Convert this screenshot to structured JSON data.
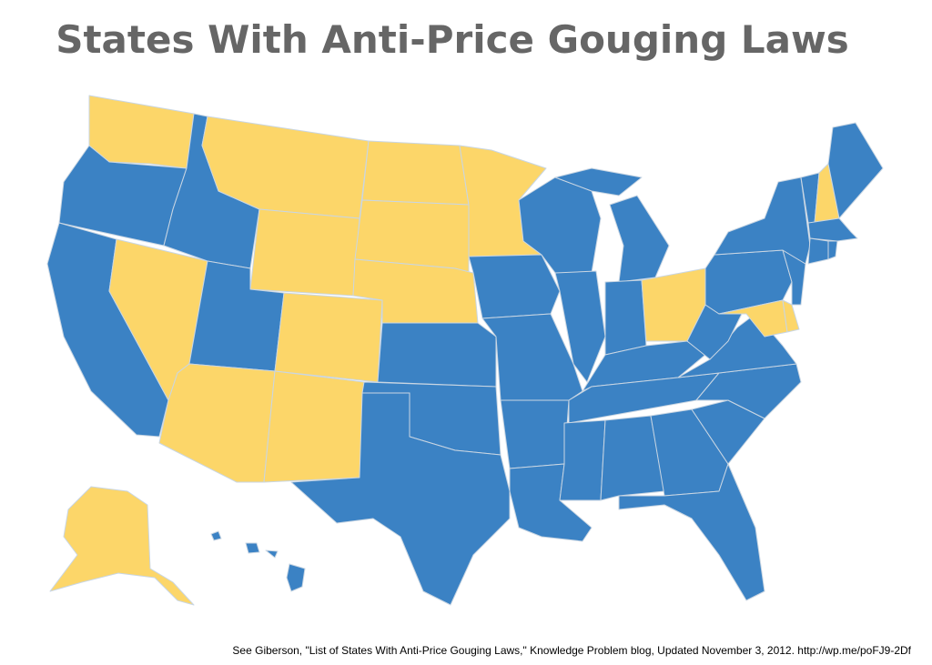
{
  "title": "States With Anti-Price Gouging Laws",
  "caption": "See Giberson, \"List of States With Anti-Price Gouging Laws,\" Knowledge Problem blog, Updated November 3, 2012. http://wp.me/poFJ9-2Df"
}
